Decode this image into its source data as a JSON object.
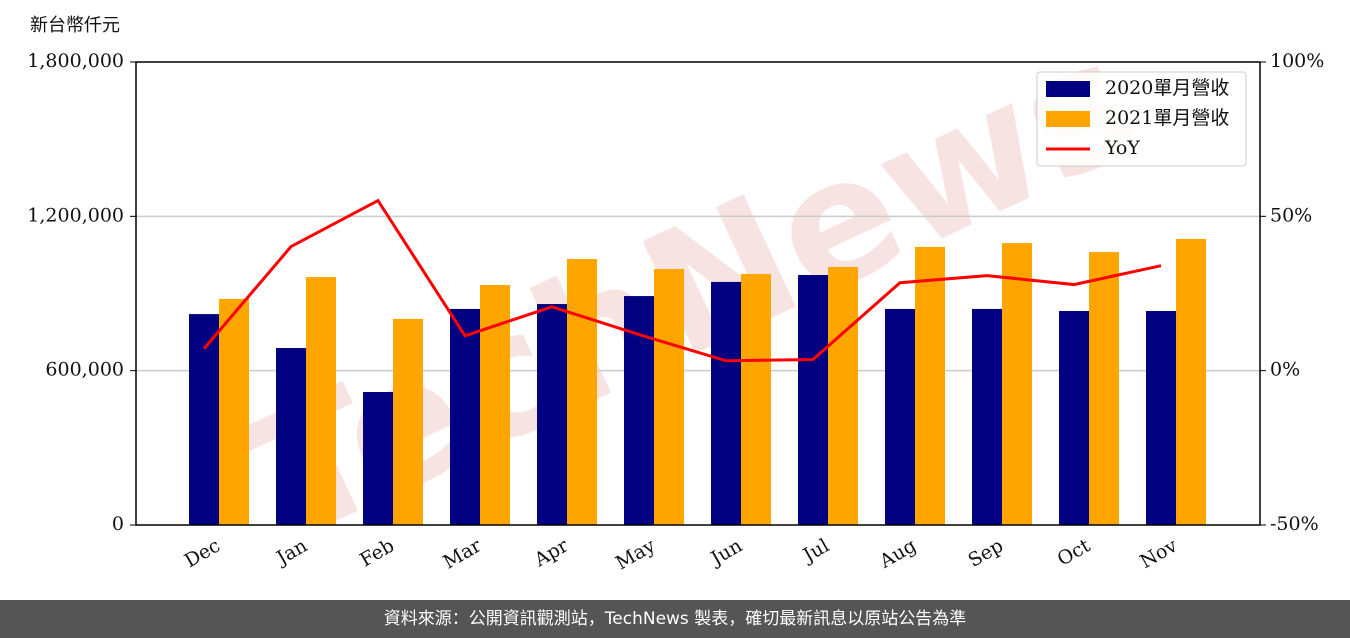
{
  "chart_data": {
    "type": "bar",
    "y_label": "新台幣仟元",
    "watermark": "TechNews",
    "footer": "資料來源：公開資訊觀測站，TechNews 製表，確切最新訊息以原站公告為準",
    "categories": [
      "Dec",
      "Jan",
      "Feb",
      "Mar",
      "Apr",
      "May",
      "Jun",
      "Jul",
      "Aug",
      "Sep",
      "Oct",
      "Nov"
    ],
    "series": [
      {
        "name": "2020單月營收",
        "type": "bar",
        "color": "#000080",
        "values": [
          820000,
          688000,
          517000,
          840000,
          859000,
          890000,
          945000,
          972000,
          840000,
          840000,
          832000,
          832000
        ]
      },
      {
        "name": "2021單月營收",
        "type": "bar",
        "color": "#ffa500",
        "values": [
          879000,
          964000,
          801000,
          933000,
          1034000,
          995000,
          976000,
          1003000,
          1081000,
          1096000,
          1061000,
          1112000
        ]
      },
      {
        "name": "YoY",
        "type": "line",
        "axis": "y2",
        "color": "#ff0000",
        "values": [
          7.1,
          40.2,
          55.1,
          11.3,
          20.7,
          11.7,
          3.2,
          3.6,
          28.5,
          30.8,
          27.9,
          34.0
        ]
      }
    ],
    "ylim": [
      0,
      1800000
    ],
    "yticks": [
      0,
      {
        "value": 600000,
        "label": "600,000"
      },
      {
        "value": 1200000,
        "label": "1,200,000"
      },
      {
        "value": 1800000,
        "label": "1,800,000"
      }
    ],
    "y2lim": [
      -50,
      100
    ],
    "y2ticks": [
      {
        "value": -50,
        "label": "-50%"
      },
      {
        "value": 0,
        "label": "0%"
      },
      {
        "value": 50,
        "label": "50%"
      },
      {
        "value": 100,
        "label": "100%"
      }
    ],
    "grid": true,
    "legend": "upper right"
  }
}
